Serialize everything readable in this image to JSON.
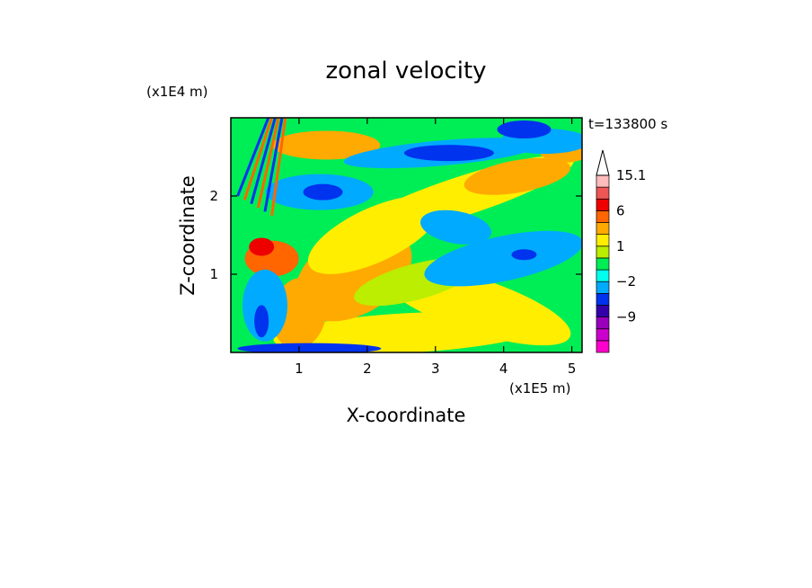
{
  "chart_data": {
    "type": "heatmap",
    "title": "zonal velocity",
    "time_label": "t=133800 s",
    "xlabel": "X-coordinate",
    "ylabel": "Z-coordinate",
    "x_unit": "(x1E5 m)",
    "y_unit": "(x1E4 m)",
    "xlim": [
      0,
      5.15
    ],
    "ylim": [
      0,
      3.0
    ],
    "x_ticks": [
      1,
      2,
      3,
      4,
      5
    ],
    "y_ticks": [
      1,
      2
    ],
    "colorbar": {
      "levels": [
        -15,
        -12,
        -9,
        -6,
        -4,
        -2,
        -1,
        0,
        1,
        2,
        3,
        6,
        9,
        12,
        15.1
      ],
      "colors": [
        "#ff00cc",
        "#cc00cc",
        "#9900bb",
        "#3300aa",
        "#0033ee",
        "#00aaff",
        "#00ffee",
        "#00ee55",
        "#bbee00",
        "#ffee00",
        "#ffaa00",
        "#ff6600",
        "#ee0000",
        "#ee5555",
        "#ffbbbb"
      ],
      "tick_labels": [
        "15.1",
        "6",
        "1",
        "-2",
        "-9"
      ],
      "tick_values": [
        15.1,
        6,
        1,
        -2,
        -9
      ],
      "extend_top": true
    }
  }
}
